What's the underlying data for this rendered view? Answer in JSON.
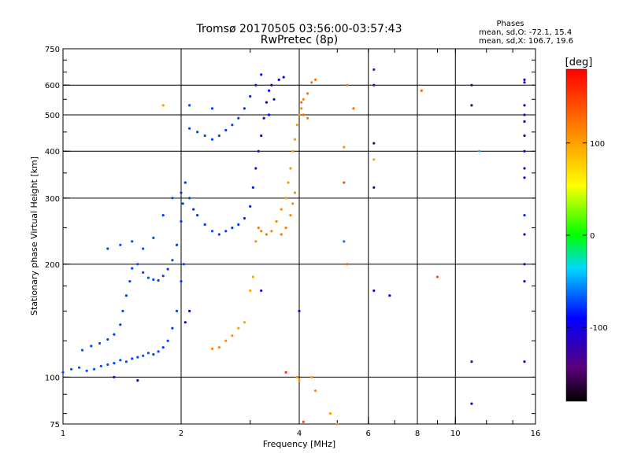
{
  "chart_data": {
    "type": "scatter",
    "title": "Tromsø 20170505 03:56:00-03:57:43",
    "subtitle": "RwPretec (8p)",
    "xlabel": "Frequency [MHz]",
    "ylabel": "Stationary phase Virtual Height [km]",
    "x_scale": "log",
    "y_scale": "log",
    "xlim": [
      1,
      16
    ],
    "ylim": [
      75,
      750
    ],
    "x_ticks": [
      1,
      2,
      4,
      6,
      8,
      10,
      16
    ],
    "y_ticks": [
      75,
      100,
      200,
      300,
      400,
      500,
      600,
      750
    ],
    "x_gridlines": [
      2,
      4,
      6,
      8,
      10
    ],
    "y_gridlines": [
      100,
      200,
      300,
      400,
      500,
      600
    ],
    "grid": true,
    "phases_box": {
      "heading": "Phases",
      "line_o": "mean, sd,O: -72.1, 15.4",
      "line_x": "mean, sd,X: 106.7, 19.6"
    },
    "colorbar": {
      "label": "[deg]",
      "range": [
        -180,
        180
      ],
      "ticks": [
        100,
        0,
        -100
      ],
      "colormap": "rainbow (black-purple-blue-cyan-green-yellow-orange-red)"
    },
    "series": [
      {
        "mode": "O",
        "phase_mean": -72.1,
        "points": [
          [
            1.0,
            103,
            -70
          ],
          [
            1.05,
            105,
            -70
          ],
          [
            1.1,
            106,
            -70
          ],
          [
            1.15,
            104,
            -72
          ],
          [
            1.2,
            105,
            -70
          ],
          [
            1.25,
            107,
            -72
          ],
          [
            1.3,
            108,
            -70
          ],
          [
            1.35,
            109,
            -74
          ],
          [
            1.4,
            111,
            -72
          ],
          [
            1.45,
            110,
            -70
          ],
          [
            1.5,
            112,
            -72
          ],
          [
            1.55,
            113,
            -70
          ],
          [
            1.6,
            114,
            -72
          ],
          [
            1.65,
            116,
            -70
          ],
          [
            1.7,
            115,
            -74
          ],
          [
            1.75,
            117,
            -72
          ],
          [
            1.8,
            120,
            -74
          ],
          [
            1.85,
            125,
            -74
          ],
          [
            1.9,
            135,
            -76
          ],
          [
            1.95,
            150,
            -74
          ],
          [
            2.0,
            180,
            -76
          ],
          [
            2.03,
            200,
            -76
          ],
          [
            1.12,
            118,
            -70
          ],
          [
            1.18,
            121,
            -72
          ],
          [
            1.24,
            123,
            -70
          ],
          [
            1.3,
            126,
            -72
          ],
          [
            1.35,
            130,
            -74
          ],
          [
            1.4,
            138,
            -74
          ],
          [
            1.42,
            150,
            -72
          ],
          [
            1.45,
            165,
            -74
          ],
          [
            1.48,
            180,
            -72
          ],
          [
            1.5,
            195,
            -74
          ],
          [
            1.55,
            200,
            -72
          ],
          [
            1.6,
            190,
            -72
          ],
          [
            1.65,
            184,
            -70
          ],
          [
            1.7,
            182,
            -72
          ],
          [
            1.75,
            181,
            -74
          ],
          [
            1.8,
            186,
            -74
          ],
          [
            1.85,
            194,
            -76
          ],
          [
            1.9,
            205,
            -74
          ],
          [
            1.95,
            225,
            -76
          ],
          [
            2.0,
            260,
            -76
          ],
          [
            2.02,
            290,
            -78
          ],
          [
            2.05,
            330,
            -78
          ],
          [
            2.1,
            300,
            -76
          ],
          [
            2.15,
            280,
            -78
          ],
          [
            2.2,
            270,
            -76
          ],
          [
            2.3,
            255,
            -76
          ],
          [
            2.4,
            245,
            -74
          ],
          [
            2.5,
            240,
            -74
          ],
          [
            2.6,
            245,
            -76
          ],
          [
            2.7,
            250,
            -76
          ],
          [
            2.8,
            255,
            -78
          ],
          [
            2.9,
            265,
            -80
          ],
          [
            3.0,
            285,
            -82
          ],
          [
            3.05,
            320,
            -84
          ],
          [
            3.1,
            360,
            -84
          ],
          [
            3.15,
            400,
            -86
          ],
          [
            3.2,
            440,
            -88
          ],
          [
            3.25,
            490,
            -88
          ],
          [
            3.3,
            540,
            -90
          ],
          [
            3.35,
            580,
            -90
          ],
          [
            3.4,
            600,
            -92
          ],
          [
            2.1,
            460,
            -74
          ],
          [
            2.2,
            450,
            -74
          ],
          [
            2.3,
            440,
            -72
          ],
          [
            2.4,
            430,
            -72
          ],
          [
            2.5,
            440,
            -72
          ],
          [
            2.6,
            455,
            -74
          ],
          [
            2.7,
            470,
            -74
          ],
          [
            2.8,
            490,
            -76
          ],
          [
            2.9,
            520,
            -78
          ],
          [
            3.0,
            560,
            -80
          ],
          [
            3.1,
            600,
            -84
          ],
          [
            3.2,
            640,
            -86
          ],
          [
            3.35,
            500,
            -90
          ],
          [
            3.45,
            550,
            -92
          ],
          [
            3.55,
            620,
            -94
          ],
          [
            3.65,
            630,
            -94
          ],
          [
            1.3,
            220,
            -72
          ],
          [
            1.4,
            225,
            -70
          ],
          [
            1.5,
            230,
            -72
          ],
          [
            1.6,
            220,
            -70
          ],
          [
            1.7,
            235,
            -72
          ],
          [
            1.8,
            270,
            -74
          ],
          [
            1.9,
            300,
            -74
          ],
          [
            2.0,
            310,
            -76
          ],
          [
            2.4,
            520,
            -74
          ],
          [
            2.1,
            530,
            -72
          ],
          [
            4.0,
            150,
            -100
          ],
          [
            5.2,
            230,
            -60
          ],
          [
            6.2,
            170,
            -100
          ],
          [
            6.2,
            320,
            -120
          ],
          [
            6.2,
            420,
            -130
          ],
          [
            6.2,
            600,
            -85
          ],
          [
            6.2,
            660,
            -80
          ],
          [
            6.8,
            165,
            -90
          ],
          [
            11.0,
            600,
            -150
          ],
          [
            11.0,
            530,
            -150
          ],
          [
            11.0,
            110,
            -130
          ],
          [
            11.0,
            85,
            -120
          ],
          [
            11.5,
            400,
            -40
          ],
          [
            15.0,
            110,
            -110
          ],
          [
            15.0,
            180,
            -110
          ],
          [
            15.0,
            200,
            -120
          ],
          [
            15.0,
            240,
            -110
          ],
          [
            15.0,
            270,
            -80
          ],
          [
            15.0,
            340,
            -110
          ],
          [
            15.0,
            360,
            -110
          ],
          [
            15.0,
            400,
            -110
          ],
          [
            15.0,
            440,
            -110
          ],
          [
            15.0,
            480,
            -110
          ],
          [
            15.0,
            500,
            -115
          ],
          [
            15.0,
            530,
            -115
          ],
          [
            15.0,
            610,
            -110
          ],
          [
            15.0,
            620,
            -110
          ],
          [
            1.35,
            100,
            -110
          ],
          [
            1.55,
            98,
            -110
          ],
          [
            2.05,
            140,
            -120
          ],
          [
            2.1,
            150,
            -110
          ],
          [
            3.2,
            170,
            -115
          ]
        ]
      },
      {
        "mode": "X",
        "phase_mean": 106.7,
        "points": [
          [
            2.4,
            119,
            110
          ],
          [
            2.5,
            120,
            110
          ],
          [
            2.6,
            125,
            108
          ],
          [
            2.7,
            129,
            105
          ],
          [
            2.8,
            135,
            102
          ],
          [
            2.9,
            140,
            100
          ],
          [
            3.0,
            170,
            100
          ],
          [
            3.05,
            185,
            98
          ],
          [
            3.1,
            230,
            110
          ],
          [
            3.15,
            250,
            120
          ],
          [
            3.2,
            245,
            120
          ],
          [
            3.3,
            240,
            120
          ],
          [
            3.4,
            245,
            118
          ],
          [
            3.5,
            260,
            115
          ],
          [
            3.6,
            280,
            110
          ],
          [
            3.7,
            300,
            108
          ],
          [
            3.75,
            330,
            106
          ],
          [
            3.8,
            360,
            104
          ],
          [
            3.85,
            400,
            102
          ],
          [
            3.9,
            430,
            100
          ],
          [
            3.95,
            470,
            102
          ],
          [
            4.0,
            500,
            110
          ],
          [
            4.05,
            520,
            115
          ],
          [
            4.1,
            550,
            118
          ],
          [
            4.2,
            570,
            120
          ],
          [
            4.3,
            610,
            122
          ],
          [
            4.4,
            620,
            124
          ],
          [
            3.6,
            240,
            118
          ],
          [
            3.7,
            250,
            116
          ],
          [
            3.8,
            270,
            112
          ],
          [
            3.85,
            290,
            110
          ],
          [
            3.9,
            310,
            108
          ],
          [
            4.05,
            540,
            125
          ],
          [
            4.1,
            500,
            122
          ],
          [
            4.2,
            490,
            120
          ],
          [
            3.95,
            100,
            110
          ],
          [
            4.0,
            98,
            105
          ],
          [
            4.3,
            100,
            105
          ],
          [
            4.4,
            92,
            108
          ],
          [
            4.8,
            80,
            102
          ],
          [
            5.2,
            410,
            108
          ],
          [
            5.2,
            330,
            140
          ],
          [
            5.3,
            200,
            128
          ],
          [
            5.3,
            600,
            120
          ],
          [
            5.5,
            520,
            125
          ],
          [
            6.2,
            380,
            100
          ],
          [
            8.2,
            580,
            130
          ],
          [
            9.0,
            185,
            140
          ],
          [
            3.7,
            103,
            160
          ],
          [
            4.1,
            76,
            150
          ],
          [
            1.8,
            530,
            100
          ],
          [
            5.0,
            75,
            105
          ]
        ]
      }
    ]
  }
}
